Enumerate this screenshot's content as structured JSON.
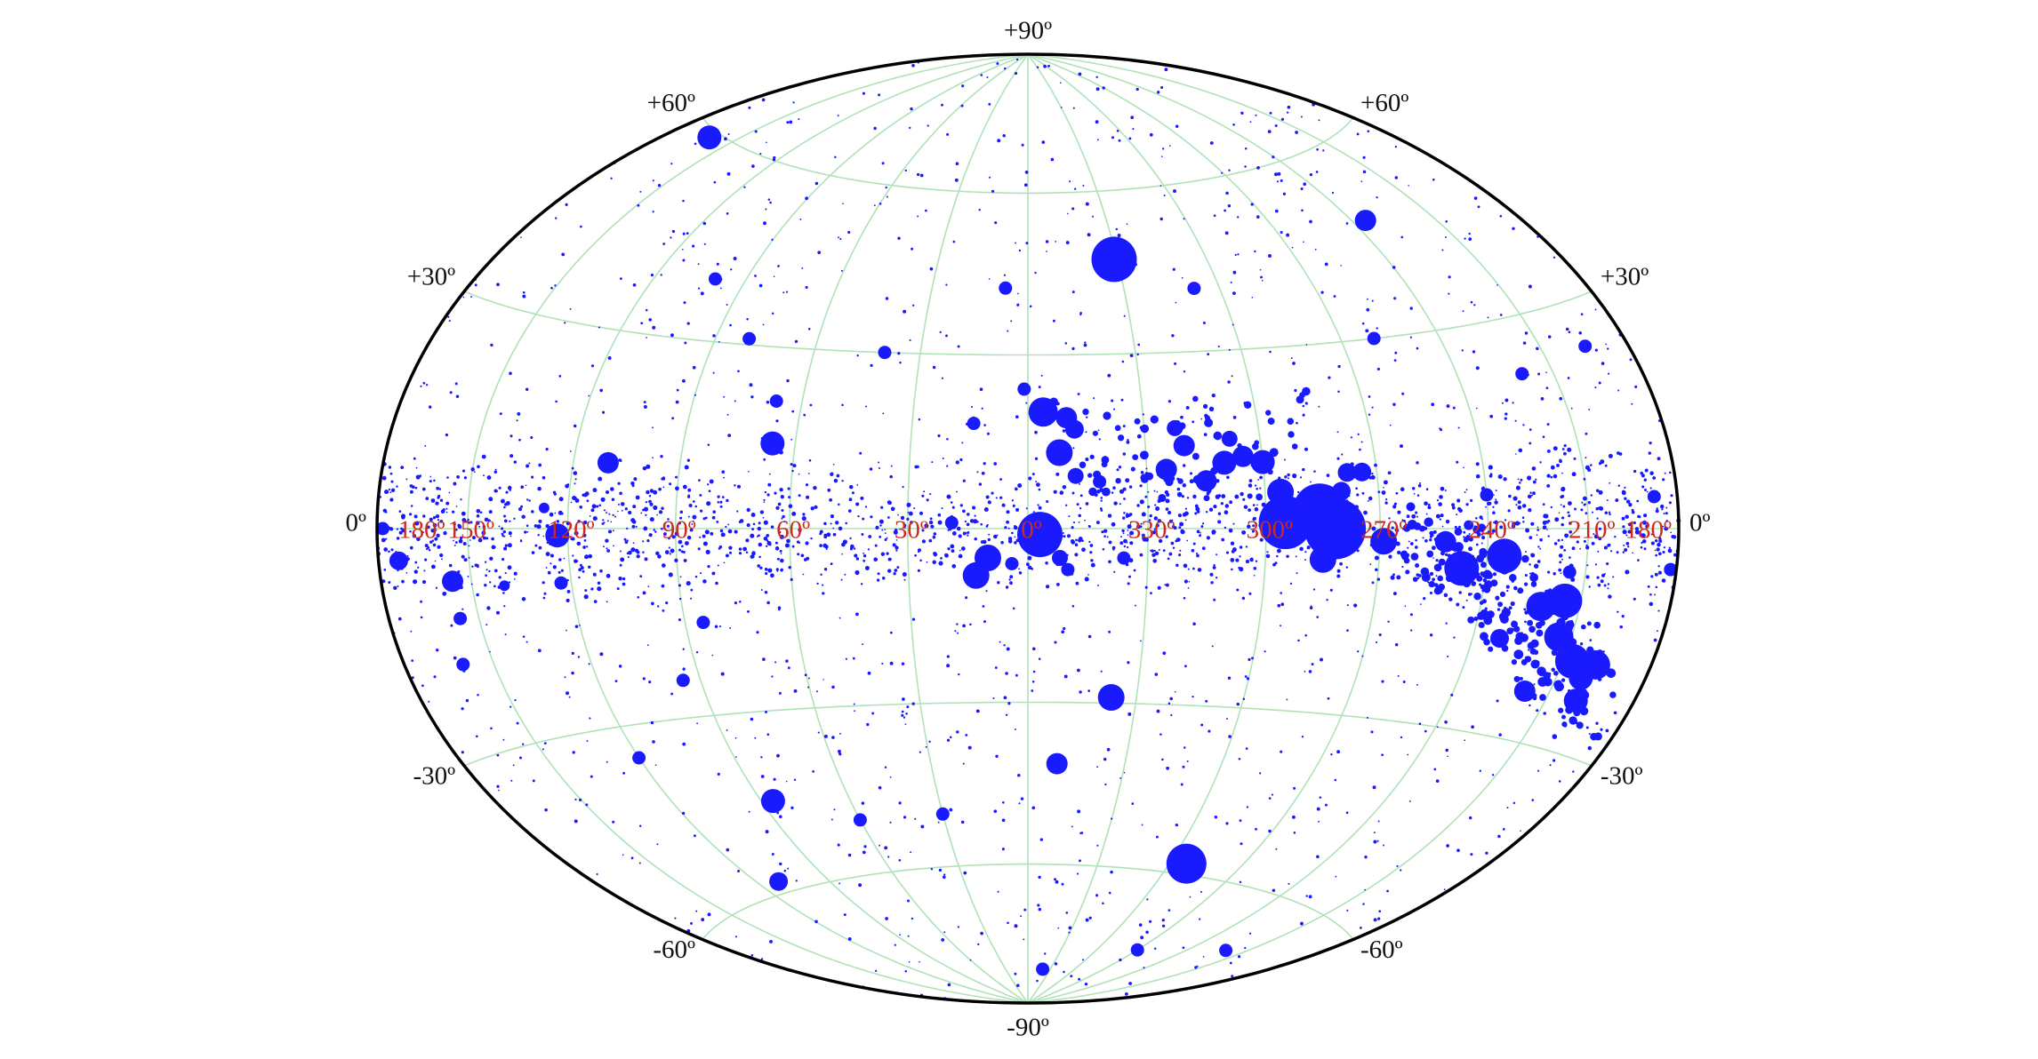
{
  "chart_data": {
    "type": "scatter",
    "projection": "hammer-aitoff",
    "coordinate_system": "galactic",
    "grid": true,
    "x_direction": "decreasing-to-right",
    "xlim": [
      180,
      -180
    ],
    "ylim": [
      -90,
      90
    ],
    "colors": {
      "points": "#1a1aff",
      "grid": "#b0e2b8",
      "frame": "#000000",
      "lon_labels": "#cc2a20",
      "lat_labels": "#111111"
    },
    "lon_ticks": [
      {
        "value": 180,
        "label": "180º"
      },
      {
        "value": 150,
        "label": "150º"
      },
      {
        "value": 120,
        "label": "120º"
      },
      {
        "value": 90,
        "label": "90º"
      },
      {
        "value": 60,
        "label": "60º"
      },
      {
        "value": 30,
        "label": "30º"
      },
      {
        "value": 0,
        "label": "0º"
      },
      {
        "value": -30,
        "label": "330º"
      },
      {
        "value": -60,
        "label": "300º"
      },
      {
        "value": -90,
        "label": "270º"
      },
      {
        "value": -120,
        "label": "240º"
      },
      {
        "value": -150,
        "label": "210º"
      },
      {
        "value": -180,
        "label": "180º"
      }
    ],
    "lat_ticks": [
      {
        "value": 90,
        "label": "+90º",
        "sides": [
          "top"
        ]
      },
      {
        "value": 60,
        "label": "+60º",
        "sides": [
          "left",
          "right"
        ]
      },
      {
        "value": 30,
        "label": "+30º",
        "sides": [
          "left",
          "right"
        ]
      },
      {
        "value": 0,
        "label": "0º",
        "sides": [
          "left",
          "right"
        ]
      },
      {
        "value": -30,
        "label": "-30º",
        "sides": [
          "left",
          "right"
        ]
      },
      {
        "value": -60,
        "label": "-60º",
        "sides": [
          "left",
          "right"
        ]
      },
      {
        "value": -90,
        "label": "-90º",
        "sides": [
          "bottom"
        ]
      }
    ],
    "points": [
      {
        "l": 162,
        "b": 59,
        "s": 1.8
      },
      {
        "l": 19,
        "b": 1,
        "s": 1.0
      },
      {
        "l": -3,
        "b": -1,
        "s": 3.4
      },
      {
        "l": -3,
        "b": -3,
        "s": 1.6
      },
      {
        "l": 10,
        "b": -5,
        "s": 2.0
      },
      {
        "l": -4,
        "b": 20,
        "s": 2.2
      },
      {
        "l": -10,
        "b": 19,
        "s": 1.6
      },
      {
        "l": -12,
        "b": 17,
        "s": 1.4
      },
      {
        "l": -8,
        "b": 13,
        "s": 2.0
      },
      {
        "l": -12,
        "b": 9,
        "s": 1.2
      },
      {
        "l": -18,
        "b": 8,
        "s": 1.0
      },
      {
        "l": 14,
        "b": 18,
        "s": 1.0
      },
      {
        "l": -29,
        "b": 47,
        "s": 3.4
      },
      {
        "l": -45,
        "b": 8,
        "s": 1.6
      },
      {
        "l": -50,
        "b": 11,
        "s": 1.8
      },
      {
        "l": -52,
        "b": 15,
        "s": 1.2
      },
      {
        "l": -55,
        "b": 12,
        "s": 1.6
      },
      {
        "l": -60,
        "b": 11,
        "s": 1.8
      },
      {
        "l": -64,
        "b": 6,
        "s": 2.0
      },
      {
        "l": -35,
        "b": 10,
        "s": 1.6
      },
      {
        "l": -40,
        "b": 14,
        "s": 1.6
      },
      {
        "l": -38,
        "b": 17,
        "s": 1.2
      },
      {
        "l": -65,
        "b": 1,
        "s": 4.0
      },
      {
        "l": -74,
        "b": 3,
        "s": 4.0
      },
      {
        "l": -78,
        "b": 0,
        "s": 4.6
      },
      {
        "l": -80,
        "b": 6,
        "s": 1.4
      },
      {
        "l": -82,
        "b": 9,
        "s": 1.4
      },
      {
        "l": -86,
        "b": 9,
        "s": 1.4
      },
      {
        "l": -75,
        "b": -5,
        "s": 2.0
      },
      {
        "l": -91,
        "b": -2,
        "s": 2.0
      },
      {
        "l": -108,
        "b": -2,
        "s": 1.6
      },
      {
        "l": -113,
        "b": -6,
        "s": 2.6
      },
      {
        "l": -125,
        "b": -4,
        "s": 2.6
      },
      {
        "l": -145,
        "b": -10,
        "s": 2.6
      },
      {
        "l": -138,
        "b": -11,
        "s": 2.2
      },
      {
        "l": -146,
        "b": -15,
        "s": 2.2
      },
      {
        "l": -153,
        "b": -18,
        "s": 2.6
      },
      {
        "l": -161,
        "b": -18,
        "s": 2.2
      },
      {
        "l": -158,
        "b": -20,
        "s": 1.8
      },
      {
        "l": -160,
        "b": -23,
        "s": 1.8
      },
      {
        "l": -142,
        "b": -23,
        "s": 1.6
      },
      {
        "l": -128,
        "b": -16,
        "s": 1.4
      },
      {
        "l": -120,
        "b": 5,
        "s": 1.0
      },
      {
        "l": -125,
        "b": 48,
        "s": 1.6
      },
      {
        "l": -140,
        "b": 22,
        "s": 1.0
      },
      {
        "l": -165,
        "b": 24,
        "s": 1.0
      },
      {
        "l": -172,
        "b": 4,
        "s": 1.0
      },
      {
        "l": -178,
        "b": -5,
        "s": 1.0
      },
      {
        "l": -145,
        "b": -6,
        "s": 1.0
      },
      {
        "l": 123,
        "b": -1,
        "s": 1.8
      },
      {
        "l": 173,
        "b": -4,
        "s": 1.4
      },
      {
        "l": 178,
        "b": 0,
        "s": 1.0
      },
      {
        "l": 156,
        "b": -7,
        "s": 1.6
      },
      {
        "l": 160,
        "b": -18,
        "s": 1.0
      },
      {
        "l": 156,
        "b": -12,
        "s": 1.0
      },
      {
        "l": 140,
        "b": -8,
        "s": 0.8
      },
      {
        "l": 123,
        "b": -8,
        "s": 1.0
      },
      {
        "l": 127,
        "b": 3,
        "s": 0.8
      },
      {
        "l": 110,
        "b": 10,
        "s": 1.6
      },
      {
        "l": 80,
        "b": 31,
        "s": 1.0
      },
      {
        "l": 66,
        "b": 14,
        "s": 1.8
      },
      {
        "l": 67,
        "b": 21,
        "s": 1.0
      },
      {
        "l": 40,
        "b": 30,
        "s": 1.0
      },
      {
        "l": 13,
        "b": -8,
        "s": 2.0
      },
      {
        "l": 4,
        "b": -6,
        "s": 1.0
      },
      {
        "l": 1,
        "b": 24,
        "s": 1.0
      },
      {
        "l": 7,
        "b": 42,
        "s": 1.0
      },
      {
        "l": -8,
        "b": -5,
        "s": 1.2
      },
      {
        "l": -10,
        "b": -7,
        "s": 1.0
      },
      {
        "l": -24,
        "b": -5,
        "s": 1.0
      },
      {
        "l": -23,
        "b": -29,
        "s": 2.0
      },
      {
        "l": -9,
        "b": -41,
        "s": 1.6
      },
      {
        "l": -67,
        "b": -58,
        "s": 3.0
      },
      {
        "l": -72,
        "b": -58,
        "s": 1.0
      },
      {
        "l": 85,
        "b": -15,
        "s": 1.0
      },
      {
        "l": 95,
        "b": -24,
        "s": 1.0
      },
      {
        "l": 120,
        "b": -35,
        "s": 1.0
      },
      {
        "l": 86,
        "b": -45,
        "s": 1.8
      },
      {
        "l": 111,
        "b": -58,
        "s": 1.4
      },
      {
        "l": -90,
        "b": -75,
        "s": 1.0
      },
      {
        "l": -20,
        "b": -82,
        "s": 1.0
      },
      {
        "l": -52,
        "b": 41,
        "s": 1.0
      },
      {
        "l": -140,
        "b": -70,
        "s": 1.0
      },
      {
        "l": 60,
        "b": -50,
        "s": 1.0
      },
      {
        "l": 30,
        "b": -50,
        "s": 1.0
      },
      {
        "l": -100,
        "b": 30,
        "s": 1.0
      },
      {
        "l": 100,
        "b": 40,
        "s": 1.0
      }
    ]
  }
}
